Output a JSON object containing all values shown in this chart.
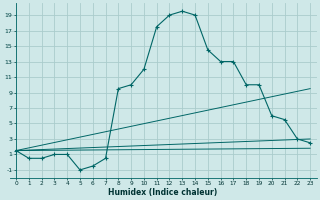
{
  "title": "",
  "xlabel": "Humidex (Indice chaleur)",
  "bg_color": "#cfe8e8",
  "grid_color": "#aacccc",
  "line_color": "#006666",
  "xlim": [
    -0.5,
    23.5
  ],
  "ylim": [
    -2,
    20.5
  ],
  "xticks": [
    0,
    1,
    2,
    3,
    4,
    5,
    6,
    7,
    8,
    9,
    10,
    11,
    12,
    13,
    14,
    15,
    16,
    17,
    18,
    19,
    20,
    21,
    22,
    23
  ],
  "yticks": [
    -1,
    1,
    3,
    5,
    7,
    9,
    11,
    13,
    15,
    17,
    19
  ],
  "main_x": [
    0,
    1,
    2,
    3,
    4,
    5,
    6,
    7,
    8,
    9,
    10,
    11,
    12,
    13,
    14,
    15,
    16,
    17,
    18,
    19,
    20,
    21,
    22,
    23
  ],
  "main_y": [
    1.5,
    0.5,
    0.5,
    1.0,
    1.0,
    -1.0,
    -0.5,
    0.5,
    9.5,
    10.0,
    12.0,
    17.5,
    19.0,
    19.5,
    19.0,
    14.5,
    13.0,
    13.0,
    10.0,
    10.0,
    6.0,
    5.5,
    3.0,
    2.5
  ],
  "line1_x": [
    0,
    23
  ],
  "line1_y": [
    1.5,
    1.8
  ],
  "line2_x": [
    0,
    23
  ],
  "line2_y": [
    1.5,
    9.5
  ],
  "line3_x": [
    0,
    23
  ],
  "line3_y": [
    1.5,
    3.0
  ]
}
